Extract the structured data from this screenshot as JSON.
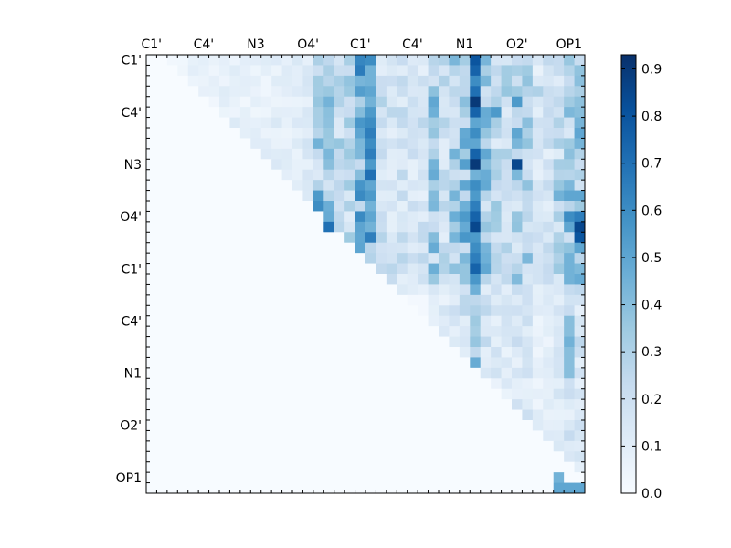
{
  "chart_data": {
    "type": "heatmap",
    "title": "",
    "xlabel": "",
    "ylabel": "",
    "n": 42,
    "x_tick_labels": [
      "C1'",
      "C4'",
      "N3",
      "O4'",
      "C1'",
      "C4'",
      "N1",
      "O2'",
      "OP1"
    ],
    "y_tick_labels": [
      "C1'",
      "C4'",
      "N3",
      "O4'",
      "C1'",
      "C4'",
      "N1",
      "O2'",
      "OP1"
    ],
    "label_every": 5,
    "colorscale": "Blues",
    "colorbar": {
      "range": [
        0.0,
        0.93
      ],
      "ticks": [
        0.0,
        0.1,
        0.2,
        0.3,
        0.4,
        0.5,
        0.6,
        0.7,
        0.8,
        0.9
      ]
    },
    "column_profile": [
      0,
      0,
      0.03,
      0.05,
      0.08,
      0.07,
      0.07,
      0.09,
      0.1,
      0.08,
      0.1,
      0.1,
      0.12,
      0.12,
      0.13,
      0.15,
      0.35,
      0.45,
      0.3,
      0.3,
      0.55,
      0.3,
      0.25,
      0.22,
      0.22,
      0.18,
      0.22,
      0.4,
      0.25,
      0.38,
      0.45,
      0.75,
      0.4,
      0.3,
      0.3,
      0.35,
      0.35,
      0.18,
      0.2,
      0.3,
      0.35,
      0.4
    ],
    "strong_cells": [
      [
        0,
        31,
        0.8
      ],
      [
        1,
        31,
        0.75
      ],
      [
        2,
        31,
        0.6
      ],
      [
        3,
        31,
        0.7
      ],
      [
        4,
        31,
        0.9
      ],
      [
        5,
        31,
        0.75
      ],
      [
        6,
        31,
        0.5
      ],
      [
        7,
        31,
        0.6
      ],
      [
        8,
        31,
        0.5
      ],
      [
        9,
        31,
        0.75
      ],
      [
        10,
        31,
        0.9
      ],
      [
        11,
        31,
        0.45
      ],
      [
        12,
        31,
        0.6
      ],
      [
        13,
        31,
        0.55
      ],
      [
        14,
        31,
        0.65
      ],
      [
        15,
        31,
        0.75
      ],
      [
        16,
        31,
        0.85
      ],
      [
        17,
        31,
        0.55
      ],
      [
        18,
        31,
        0.6
      ],
      [
        19,
        31,
        0.65
      ],
      [
        20,
        31,
        0.75
      ],
      [
        0,
        21,
        0.6
      ],
      [
        1,
        21,
        0.45
      ],
      [
        2,
        21,
        0.45
      ],
      [
        3,
        21,
        0.5
      ],
      [
        4,
        21,
        0.45
      ],
      [
        5,
        21,
        0.55
      ],
      [
        6,
        21,
        0.6
      ],
      [
        7,
        21,
        0.65
      ],
      [
        8,
        21,
        0.6
      ],
      [
        9,
        21,
        0.65
      ],
      [
        10,
        21,
        0.55
      ],
      [
        11,
        21,
        0.7
      ],
      [
        12,
        21,
        0.5
      ],
      [
        13,
        21,
        0.55
      ],
      [
        14,
        21,
        0.45
      ],
      [
        15,
        21,
        0.5
      ],
      [
        16,
        21,
        0.45
      ],
      [
        17,
        21,
        0.65
      ],
      [
        10,
        35,
        0.85
      ],
      [
        7,
        35,
        0.5
      ],
      [
        4,
        35,
        0.55
      ],
      [
        3,
        37,
        0.3
      ],
      [
        16,
        17,
        0.7
      ],
      [
        13,
        16,
        0.55
      ],
      [
        14,
        16,
        0.6
      ],
      [
        8,
        16,
        0.45
      ],
      [
        16,
        41,
        0.85
      ],
      [
        17,
        41,
        0.8
      ],
      [
        15,
        40,
        0.6
      ],
      [
        15,
        41,
        0.65
      ],
      [
        16,
        40,
        0.5
      ],
      [
        13,
        41,
        0.5
      ],
      [
        13,
        40,
        0.5
      ],
      [
        13,
        39,
        0.45
      ],
      [
        18,
        41,
        0.5
      ],
      [
        19,
        40,
        0.45
      ],
      [
        20,
        40,
        0.45
      ],
      [
        21,
        40,
        0.45
      ],
      [
        25,
        40,
        0.4
      ],
      [
        26,
        40,
        0.4
      ],
      [
        27,
        40,
        0.45
      ],
      [
        28,
        40,
        0.4
      ],
      [
        29,
        40,
        0.4
      ],
      [
        30,
        40,
        0.4
      ],
      [
        40,
        39,
        0.45
      ],
      [
        41,
        39,
        0.5
      ],
      [
        41,
        40,
        0.5
      ],
      [
        41,
        41,
        0.5
      ],
      [
        5,
        33,
        0.55
      ],
      [
        12,
        30,
        0.5
      ],
      [
        15,
        30,
        0.55
      ]
    ]
  }
}
